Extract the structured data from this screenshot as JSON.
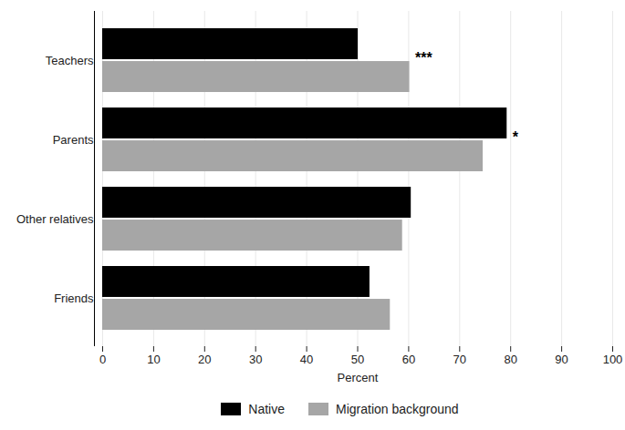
{
  "chart_data": {
    "type": "bar",
    "orientation": "horizontal",
    "categories": [
      "Teachers",
      "Parents",
      "Other relatives",
      "Friends"
    ],
    "series": [
      {
        "name": "Native",
        "color": "#000000",
        "values": [
          50.1,
          79.3,
          60.5,
          52.4
        ]
      },
      {
        "name": "Migration background",
        "color": "#a6a6a6",
        "values": [
          60.2,
          74.6,
          58.8,
          56.4
        ]
      }
    ],
    "xlabel": "Percent",
    "xlim": [
      0,
      100
    ],
    "xticks": [
      0,
      10,
      20,
      30,
      40,
      50,
      60,
      70,
      80,
      90,
      100
    ],
    "grid": true,
    "legend": "bottom",
    "annotations": [
      {
        "category": "Teachers",
        "text": "***"
      },
      {
        "category": "Parents",
        "text": "*"
      }
    ]
  }
}
